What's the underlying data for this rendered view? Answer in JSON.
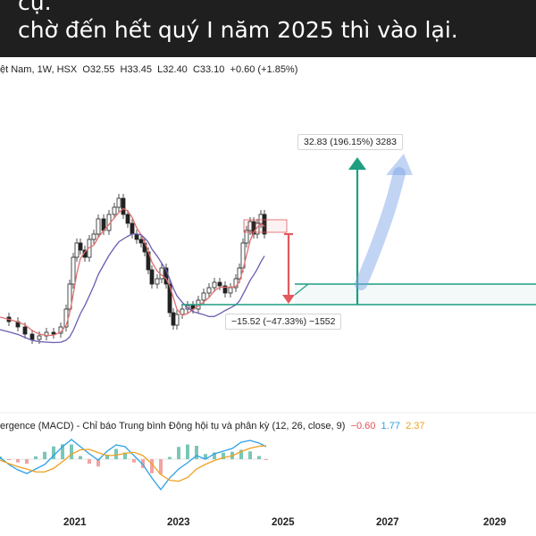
{
  "caption": {
    "line1": "cụ.",
    "line2": "chờ đến hết quý I năm 2025 thì vào lại."
  },
  "main_header": {
    "symbol": "ệt Nam, 1W, HSX",
    "open": "O32.55",
    "high": "H33.45",
    "low": "L32.40",
    "close": "C33.10",
    "change": "+0.60 (+1.85%)"
  },
  "projection": {
    "upper_label": "32.83 (196.15%) 3283",
    "lower_label": "−15.52 (−47.33%) −1552"
  },
  "macd_header": {
    "title": "ergence (MACD) - Chỉ báo Trung bình Động hội tụ và phân kỳ (12, 26, close, 9)",
    "value_hist": "−0.60",
    "value_macd": "1.77",
    "value_signal": "2.37"
  },
  "x_axis": [
    "2021",
    "2023",
    "2025",
    "2027",
    "2029"
  ],
  "colors": {
    "caption_bg": "#1f1f1f",
    "projection_teal": "#1f9e82",
    "drawdown_red": "#e05a5f",
    "up_candle": "#26a69a",
    "down_candle": "#ef5350",
    "ma_red": "#e07070",
    "ma_purple": "#6a5bb0",
    "macd_blue": "#2fa0e6",
    "macd_orange": "#f0a020"
  }
}
